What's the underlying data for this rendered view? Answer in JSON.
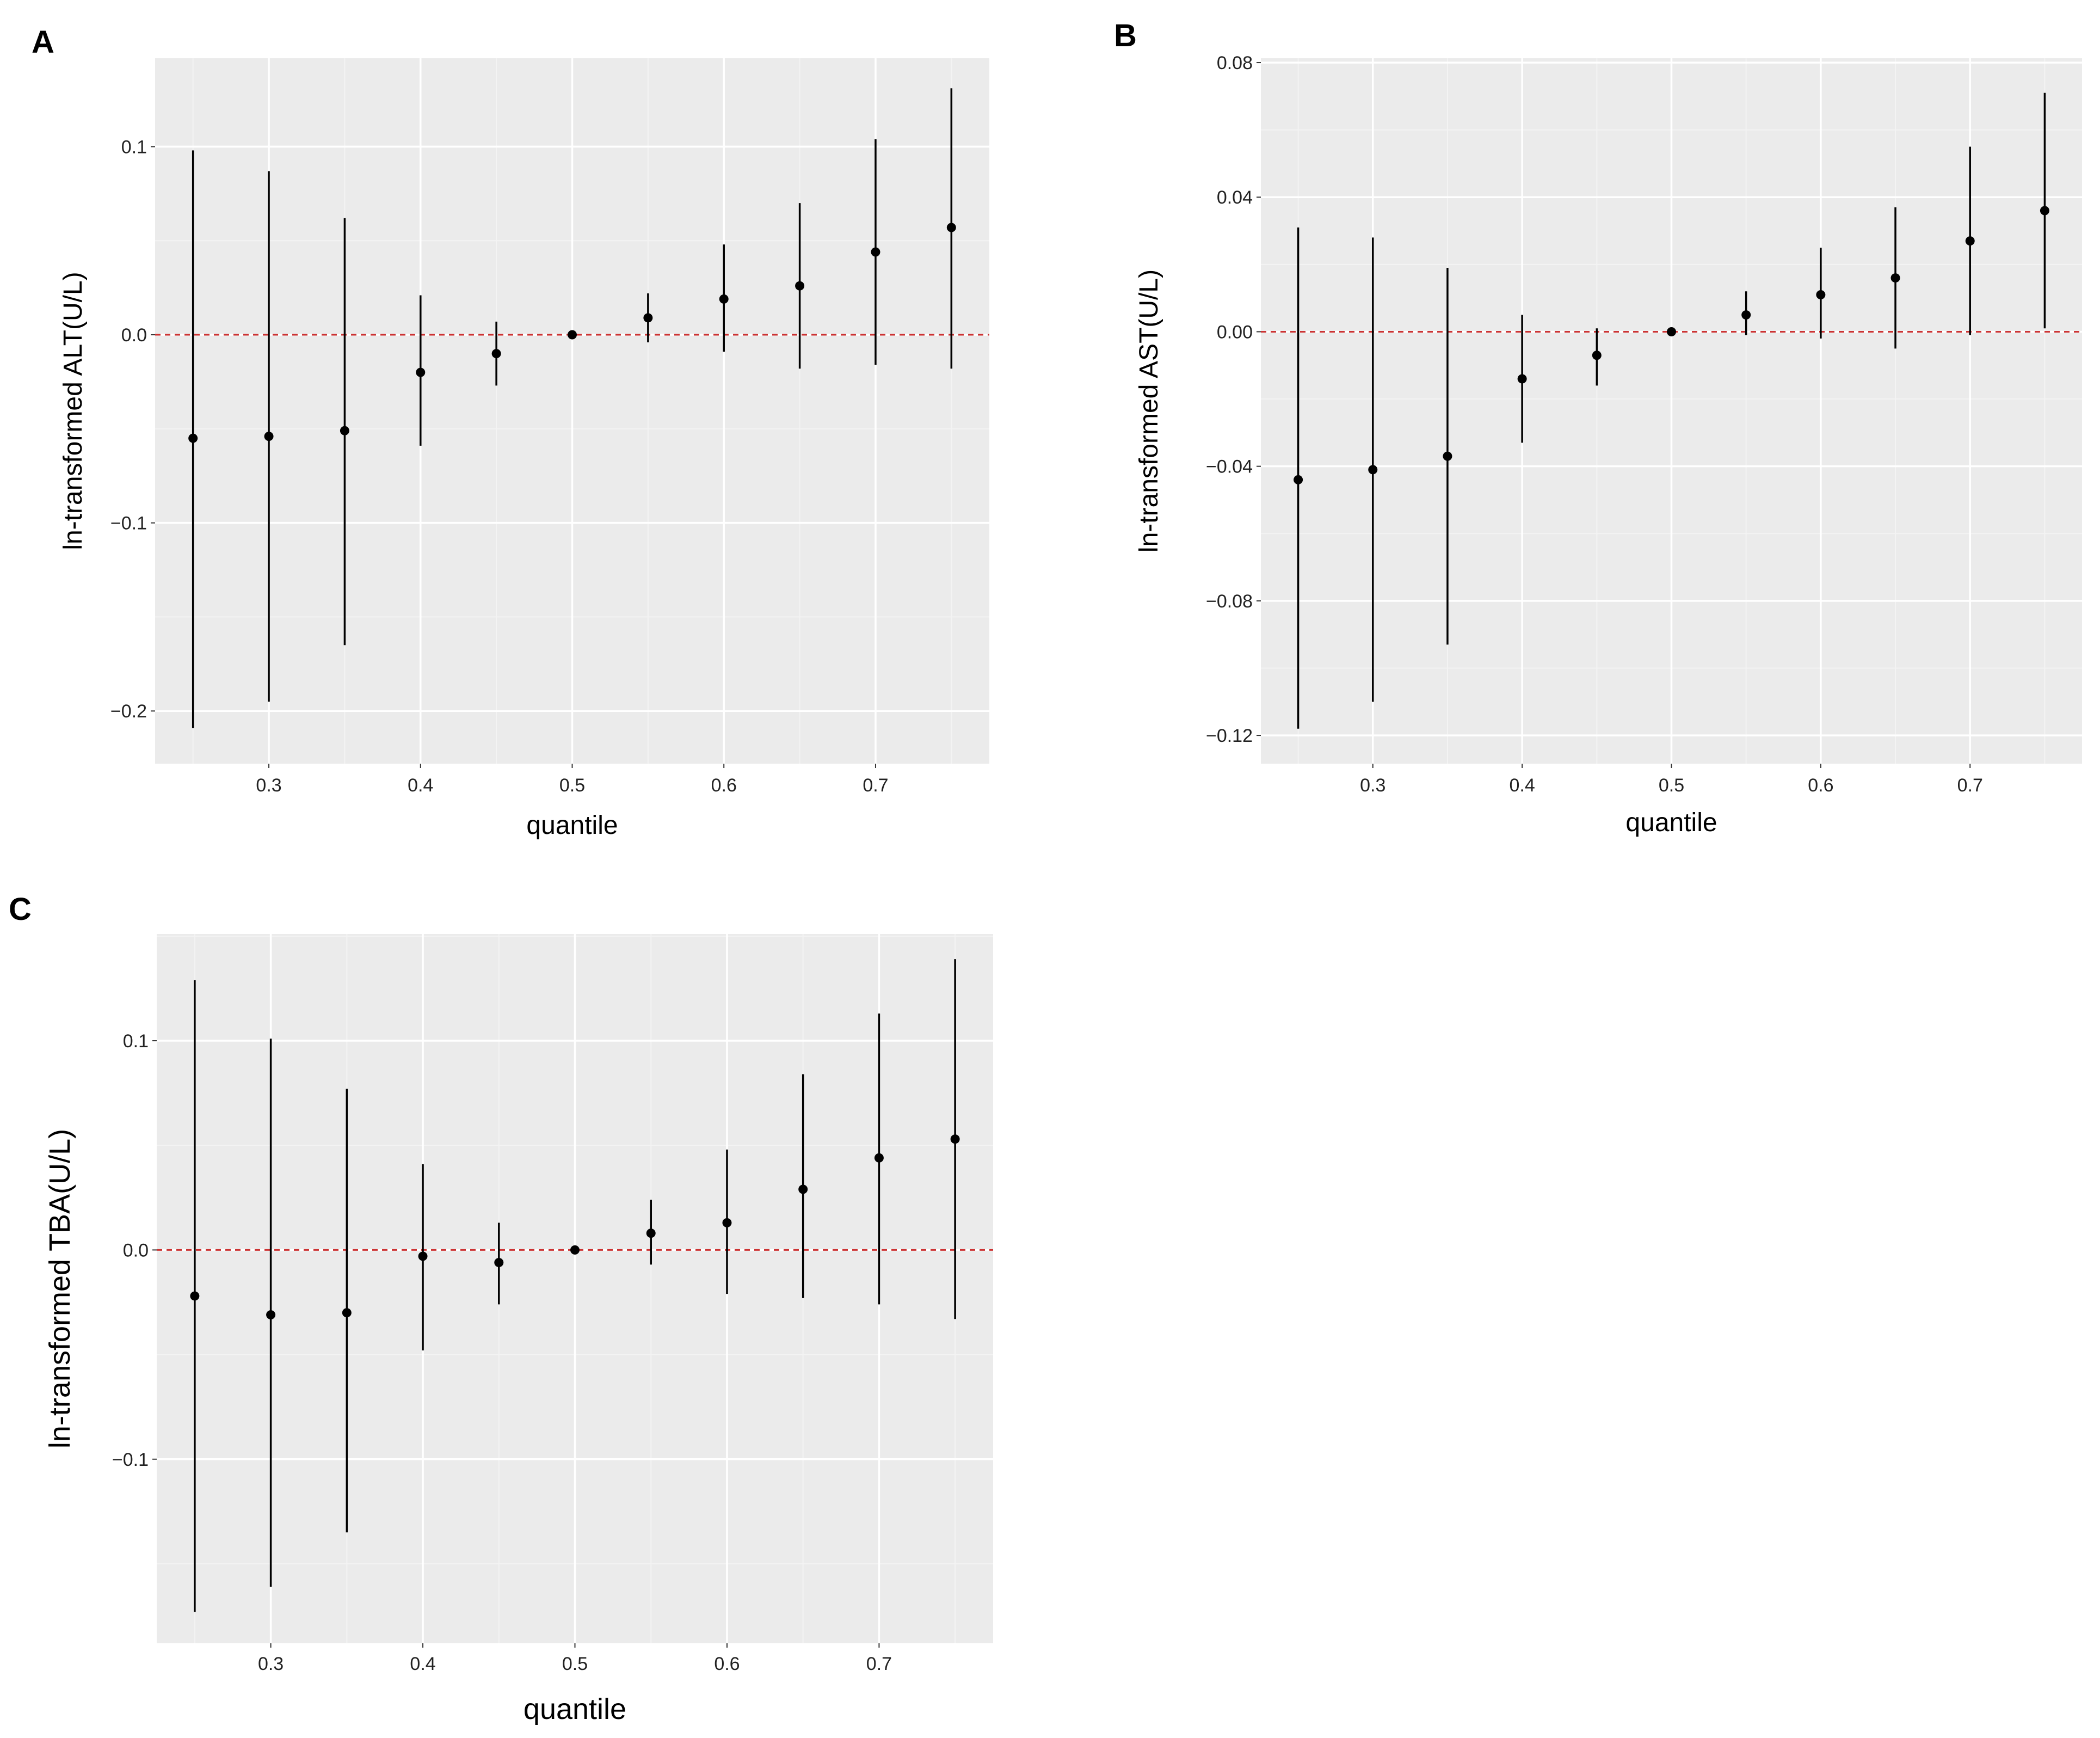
{
  "figure": {
    "background": "#ffffff",
    "panel_background": "#ebebeb",
    "grid_major_color": "#ffffff",
    "grid_minor_color": "#f3f3f3",
    "point_color": "#000000",
    "reference_line_color": "#cc3333"
  },
  "chart_data": [
    {
      "panel": "A",
      "type": "scatter",
      "subtype": "point-range",
      "title": "",
      "xlabel": "quantile",
      "ylabel": "ln-transformed ALT(U/L)",
      "xlim": [
        0.225,
        0.775
      ],
      "ylim": [
        -0.228,
        0.147
      ],
      "x_ticks": [
        0.3,
        0.4,
        0.5,
        0.6,
        0.7
      ],
      "x_tick_labels": [
        "0.3",
        "0.4",
        "0.5",
        "0.6",
        "0.7"
      ],
      "y_ticks": [
        -0.2,
        -0.1,
        0.0,
        0.1
      ],
      "y_tick_labels": [
        "−0.2",
        "−0.1",
        "0.0",
        "0.1"
      ],
      "reference_line": {
        "y": 0.0,
        "style": "dashed"
      },
      "grid": true,
      "series": [
        {
          "name": "estimate",
          "x": [
            0.25,
            0.3,
            0.35,
            0.4,
            0.45,
            0.5,
            0.55,
            0.6,
            0.65,
            0.7,
            0.75
          ],
          "y": [
            -0.055,
            -0.054,
            -0.051,
            -0.02,
            -0.01,
            0.0,
            0.009,
            0.019,
            0.026,
            0.044,
            0.057
          ],
          "lower": [
            -0.209,
            -0.195,
            -0.165,
            -0.059,
            -0.027,
            0.0,
            -0.004,
            -0.009,
            -0.018,
            -0.016,
            -0.018
          ],
          "upper": [
            0.098,
            0.087,
            0.062,
            0.021,
            0.007,
            0.0,
            0.022,
            0.048,
            0.07,
            0.104,
            0.131
          ]
        }
      ]
    },
    {
      "panel": "B",
      "type": "scatter",
      "subtype": "point-range",
      "title": "",
      "xlabel": "quantile",
      "ylabel": "ln-transformed AST(U/L)",
      "xlim": [
        0.225,
        0.775
      ],
      "ylim": [
        -0.1284,
        0.0813
      ],
      "x_ticks": [
        0.3,
        0.4,
        0.5,
        0.6,
        0.7
      ],
      "x_tick_labels": [
        "0.3",
        "0.4",
        "0.5",
        "0.6",
        "0.7"
      ],
      "y_ticks": [
        -0.12,
        -0.08,
        -0.04,
        0.0,
        0.04,
        0.08
      ],
      "y_tick_labels": [
        "−0.12",
        "−0.08",
        "−0.04",
        "0.00",
        "0.04",
        "0.08"
      ],
      "reference_line": {
        "y": 0.0,
        "style": "dashed"
      },
      "grid": true,
      "series": [
        {
          "name": "estimate",
          "x": [
            0.25,
            0.3,
            0.35,
            0.4,
            0.45,
            0.5,
            0.55,
            0.6,
            0.65,
            0.7,
            0.75
          ],
          "y": [
            -0.044,
            -0.041,
            -0.037,
            -0.014,
            -0.007,
            0.0,
            0.005,
            0.011,
            0.016,
            0.027,
            0.036
          ],
          "lower": [
            -0.118,
            -0.11,
            -0.093,
            -0.033,
            -0.016,
            0.0,
            -0.001,
            -0.002,
            -0.005,
            -0.001,
            0.001
          ],
          "upper": [
            0.031,
            0.028,
            0.019,
            0.005,
            0.001,
            0.0,
            0.012,
            0.025,
            0.037,
            0.055,
            0.071
          ]
        }
      ]
    },
    {
      "panel": "C",
      "type": "scatter",
      "subtype": "point-range",
      "title": "",
      "xlabel": "quantile",
      "ylabel": "ln-transformed TBA(U/L)",
      "xlim": [
        0.225,
        0.775
      ],
      "ylim": [
        -0.188,
        0.151
      ],
      "x_ticks": [
        0.3,
        0.4,
        0.5,
        0.6,
        0.7
      ],
      "x_tick_labels": [
        "0.3",
        "0.4",
        "0.5",
        "0.6",
        "0.7"
      ],
      "y_ticks": [
        -0.1,
        0.0,
        0.1
      ],
      "y_tick_labels": [
        "−0.1",
        "0.0",
        "0.1"
      ],
      "reference_line": {
        "y": 0.0,
        "style": "dashed"
      },
      "grid": true,
      "series": [
        {
          "name": "estimate",
          "x": [
            0.25,
            0.3,
            0.35,
            0.4,
            0.45,
            0.5,
            0.55,
            0.6,
            0.65,
            0.7,
            0.75
          ],
          "y": [
            -0.022,
            -0.031,
            -0.03,
            -0.003,
            -0.006,
            0.0,
            0.008,
            0.013,
            0.029,
            0.044,
            0.053
          ],
          "lower": [
            -0.173,
            -0.161,
            -0.135,
            -0.048,
            -0.026,
            0.0,
            -0.007,
            -0.021,
            -0.023,
            -0.026,
            -0.033
          ],
          "upper": [
            0.129,
            0.101,
            0.077,
            0.041,
            0.013,
            0.0,
            0.024,
            0.048,
            0.084,
            0.113,
            0.139
          ]
        }
      ]
    }
  ]
}
